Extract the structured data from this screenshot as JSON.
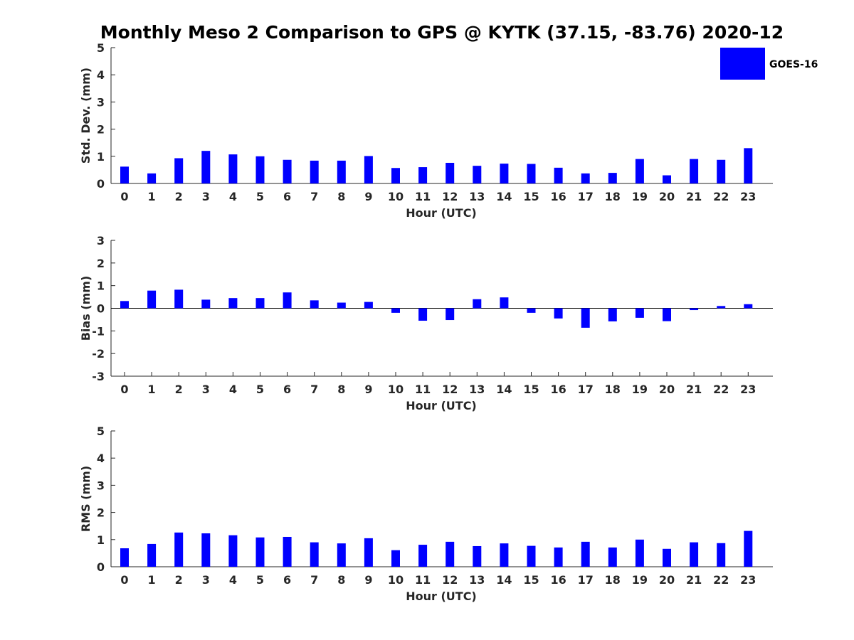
{
  "figure": {
    "title": "Monthly Meso 2 Comparison to GPS @ KYTK (37.15, -83.76) 2020-12",
    "legend": {
      "label": "GOES-16",
      "color": "#0000ff",
      "placement": "top-right"
    }
  },
  "chart_data": [
    {
      "type": "bar",
      "xlabel": "Hour (UTC)",
      "ylabel": "Std. Dev. (mm)",
      "ylim": [
        0,
        5
      ],
      "yticks": [
        0,
        1,
        2,
        3,
        4,
        5
      ],
      "categories": [
        0,
        1,
        2,
        3,
        4,
        5,
        6,
        7,
        8,
        9,
        10,
        11,
        12,
        13,
        14,
        15,
        16,
        17,
        18,
        19,
        20,
        21,
        22,
        23
      ],
      "series": [
        {
          "name": "GOES-16",
          "values": [
            0.62,
            0.37,
            0.93,
            1.2,
            1.07,
            1.0,
            0.87,
            0.84,
            0.84,
            1.01,
            0.57,
            0.6,
            0.76,
            0.65,
            0.73,
            0.72,
            0.58,
            0.37,
            0.39,
            0.9,
            0.3,
            0.9,
            0.87,
            1.3
          ]
        }
      ]
    },
    {
      "type": "bar",
      "xlabel": "Hour (UTC)",
      "ylabel": "Bias (mm)",
      "ylim": [
        -3,
        3
      ],
      "yticks": [
        -3,
        -2,
        -1,
        0,
        1,
        2,
        3
      ],
      "categories": [
        0,
        1,
        2,
        3,
        4,
        5,
        6,
        7,
        8,
        9,
        10,
        11,
        12,
        13,
        14,
        15,
        16,
        17,
        18,
        19,
        20,
        21,
        22,
        23
      ],
      "series": [
        {
          "name": "GOES-16",
          "values": [
            0.32,
            0.78,
            0.82,
            0.38,
            0.45,
            0.45,
            0.7,
            0.35,
            0.25,
            0.28,
            -0.2,
            -0.55,
            -0.52,
            0.4,
            0.48,
            -0.2,
            -0.45,
            -0.86,
            -0.58,
            -0.42,
            -0.57,
            -0.08,
            0.1,
            0.18
          ]
        }
      ]
    },
    {
      "type": "bar",
      "xlabel": "Hour (UTC)",
      "ylabel": "RMS (mm)",
      "ylim": [
        0,
        5
      ],
      "yticks": [
        0,
        1,
        2,
        3,
        4,
        5
      ],
      "categories": [
        0,
        1,
        2,
        3,
        4,
        5,
        6,
        7,
        8,
        9,
        10,
        11,
        12,
        13,
        14,
        15,
        16,
        17,
        18,
        19,
        20,
        21,
        22,
        23
      ],
      "series": [
        {
          "name": "GOES-16",
          "values": [
            0.68,
            0.84,
            1.26,
            1.23,
            1.16,
            1.08,
            1.1,
            0.9,
            0.86,
            1.05,
            0.61,
            0.81,
            0.92,
            0.76,
            0.86,
            0.77,
            0.71,
            0.92,
            0.71,
            1.0,
            0.66,
            0.9,
            0.87,
            1.32
          ]
        }
      ]
    }
  ]
}
